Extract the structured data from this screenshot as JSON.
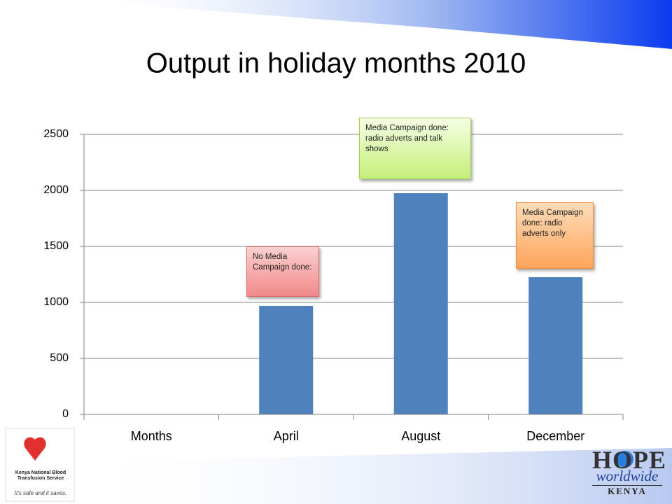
{
  "chart_data": {
    "type": "bar",
    "title": "Output in holiday months 2010",
    "categories": [
      "Months",
      "April",
      "August",
      "December"
    ],
    "values": [
      null,
      969,
      1975,
      1225
    ],
    "color": "#4f81bd",
    "annotations": [
      null,
      "No Media Campaign done:",
      "Media Campaign done: radio adverts and talk shows",
      "Media Campaign done: radio adverts only"
    ],
    "ylim": [
      0,
      2500
    ],
    "yticks": [
      0,
      500,
      1000,
      1500,
      2000,
      2500
    ],
    "grid": true
  },
  "footer": {
    "left_name": "Kenya National Blood Transfusion Service",
    "left_tagline": "It's safe and it saves.",
    "right_brand": "HOPE",
    "right_sub": "worldwide",
    "right_country": "KENYA"
  }
}
